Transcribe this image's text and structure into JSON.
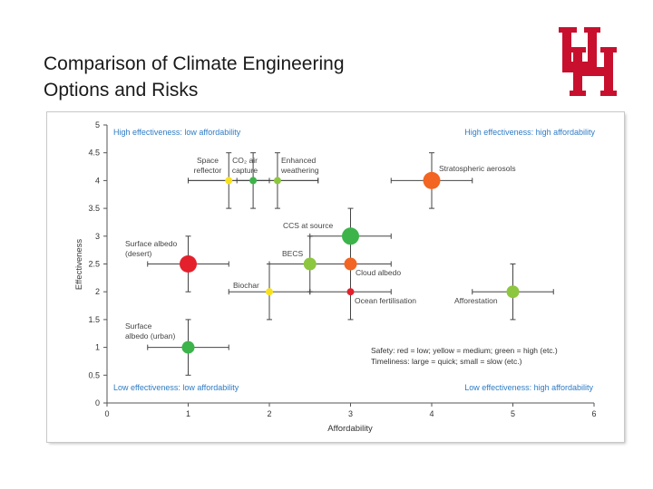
{
  "slide": {
    "title_line1": "Comparison of Climate Engineering",
    "title_line2": "Options and Risks"
  },
  "logo": {
    "name": "UH",
    "color": "#c8102e"
  },
  "chart_data": {
    "type": "scatter",
    "xlabel": "Affordability",
    "ylabel": "Effectiveness",
    "xlim": [
      0,
      6
    ],
    "ylim": [
      0,
      5
    ],
    "x_ticks": [
      "0",
      "1",
      "2",
      "3",
      "4",
      "5",
      "6"
    ],
    "y_ticks": [
      "0",
      "0.5",
      "1",
      "1.5",
      "2",
      "2.5",
      "3",
      "3.5",
      "4",
      "4.5",
      "5"
    ],
    "grid": false,
    "quadrant_labels": {
      "top_left": "High effectiveness: low affordability",
      "top_right": "High effectiveness: high affordability",
      "bottom_left": "Low effectiveness: low affordability",
      "bottom_right": "Low effectiveness: high affordability"
    },
    "notes": [
      "Safety: red = low; yellow = medium; green = high (etc.)",
      "Timeliness: large = quick; small = slow (etc.)"
    ],
    "colors": {
      "red": "#e4202c",
      "orange": "#f26522",
      "yellow": "#f7e11f",
      "green": "#3cb44a",
      "light_green": "#8dc63f"
    },
    "points": [
      {
        "label": "Space reflector",
        "x": 1.5,
        "y": 4,
        "x_err": [
          1.0,
          2.0
        ],
        "y_err": [
          3.5,
          4.5
        ],
        "color": "yellow",
        "size": "small"
      },
      {
        "label": "CO₂ air capture",
        "x": 1.8,
        "y": 4,
        "x_err": [
          1.0,
          2.6
        ],
        "y_err": [
          3.5,
          4.5
        ],
        "color": "green",
        "size": "small"
      },
      {
        "label": "Enhanced weathering",
        "x": 2.1,
        "y": 4,
        "x_err": [
          1.6,
          2.6
        ],
        "y_err": [
          3.5,
          4.5
        ],
        "color": "light_green",
        "size": "small"
      },
      {
        "label": "Stratospheric aerosols",
        "x": 4.0,
        "y": 4,
        "x_err": [
          3.5,
          4.5
        ],
        "y_err": [
          3.5,
          4.5
        ],
        "color": "orange",
        "size": "large"
      },
      {
        "label": "CCS at source",
        "x": 3.0,
        "y": 3,
        "x_err": [
          2.5,
          3.5
        ],
        "y_err": [
          2.5,
          3.5
        ],
        "color": "green",
        "size": "large"
      },
      {
        "label": "Surface albedo (desert)",
        "x": 1.0,
        "y": 2.5,
        "x_err": [
          0.5,
          1.5
        ],
        "y_err": [
          2.0,
          3.0
        ],
        "color": "red",
        "size": "large"
      },
      {
        "label": "BECS",
        "x": 2.5,
        "y": 2.5,
        "x_err": [
          2.0,
          3.0
        ],
        "y_err": [
          2.0,
          3.0
        ],
        "color": "light_green",
        "size": "medium"
      },
      {
        "label": "Cloud albedo",
        "x": 3.0,
        "y": 2.5,
        "x_err": [
          2.5,
          3.5
        ],
        "y_err": [
          2.0,
          3.0
        ],
        "color": "orange",
        "size": "medium"
      },
      {
        "label": "Biochar",
        "x": 2.0,
        "y": 2,
        "x_err": [
          1.5,
          2.5
        ],
        "y_err": [
          1.5,
          2.5
        ],
        "color": "yellow",
        "size": "small"
      },
      {
        "label": "Ocean fertilisation",
        "x": 3.0,
        "y": 2,
        "x_err": [
          2.5,
          3.5
        ],
        "y_err": [
          1.5,
          2.5
        ],
        "color": "red",
        "size": "small"
      },
      {
        "label": "Afforestation",
        "x": 5.0,
        "y": 2,
        "x_err": [
          4.5,
          5.5
        ],
        "y_err": [
          1.5,
          2.5
        ],
        "color": "light_green",
        "size": "medium"
      },
      {
        "label": "Surface albedo (urban)",
        "x": 1.0,
        "y": 1,
        "x_err": [
          0.5,
          1.5
        ],
        "y_err": [
          0.5,
          1.5
        ],
        "color": "green",
        "size": "medium"
      }
    ]
  }
}
